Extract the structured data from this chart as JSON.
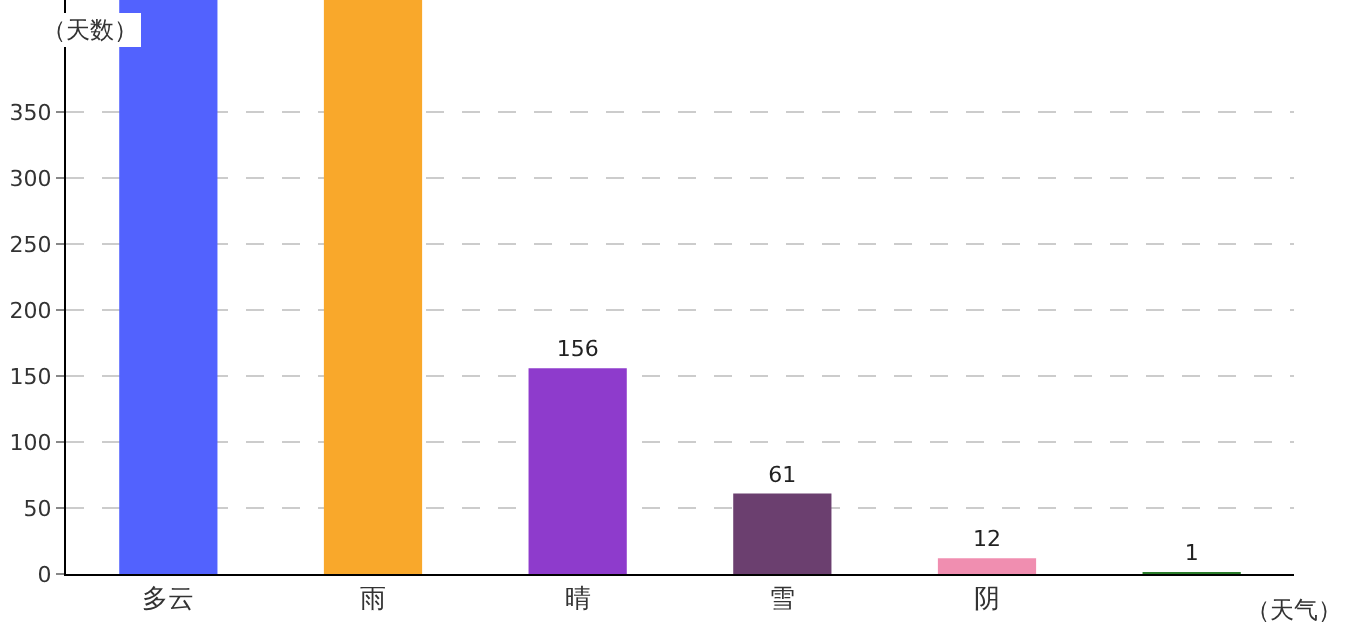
{
  "chart_data": {
    "type": "bar",
    "xlabel": "（天气）",
    "ylabel": "（天数）",
    "categories": [
      "多云",
      "雨",
      "晴",
      "雪",
      "阴",
      null
    ],
    "values": [
      435,
      435,
      156,
      61,
      12,
      1
    ],
    "colors": [
      "#5262fe",
      "#f9a82b",
      "#8e3bcc",
      "#6b3f6f",
      "#f08eb0",
      "#2a7d2a"
    ],
    "value_labels": [
      null,
      null,
      "156",
      "61",
      "12",
      "1"
    ],
    "ylim": [
      0,
      435
    ],
    "yticks": [
      0,
      50,
      100,
      150,
      200,
      250,
      300,
      350
    ],
    "grid": "y"
  }
}
